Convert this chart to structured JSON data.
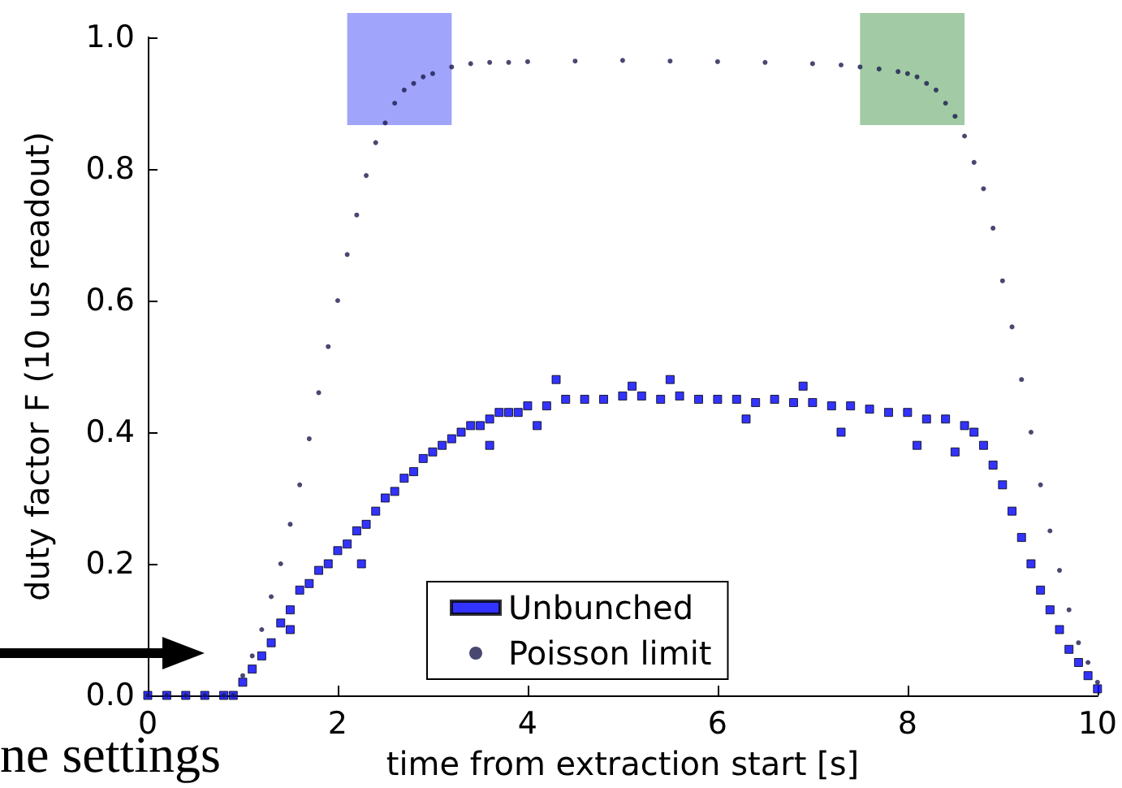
{
  "chart_data": {
    "type": "scatter",
    "xlabel": "time from extraction start [s]",
    "ylabel": "duty factor F (10 us readout)",
    "annotations": [
      "ne settings"
    ],
    "xlim": [
      0,
      10
    ],
    "xticks": [
      0,
      2,
      4,
      6,
      8,
      10
    ],
    "ylim": [
      0,
      1
    ],
    "yticks": [
      {
        "value": 0,
        "label": "0.0"
      },
      0.2,
      0.4,
      0.6,
      0.8,
      {
        "value": 1,
        "label": "1.0"
      }
    ],
    "grid": false,
    "legend": "bottom",
    "bands": [
      {
        "axis": "x",
        "from": 2.1,
        "to": 3.2,
        "color": "#a0a4fa"
      },
      {
        "axis": "x",
        "from": 7.5,
        "to": 8.6,
        "color": "#a2caa4"
      }
    ],
    "series": [
      {
        "name": "Unbunched",
        "color": "#0000ff",
        "marker": "square",
        "x": [
          0,
          0.2,
          0.4,
          0.6,
          0.8,
          0.9,
          1.0,
          1.1,
          1.2,
          1.3,
          1.4,
          1.5,
          1.6,
          1.7,
          1.8,
          1.9,
          2.0,
          2.1,
          2.2,
          2.3,
          2.4,
          2.5,
          2.6,
          2.7,
          2.8,
          2.9,
          3.0,
          3.1,
          3.2,
          3.3,
          3.4,
          3.5,
          3.6,
          3.7,
          3.8,
          3.9,
          4.0,
          4.2,
          4.4,
          4.6,
          4.8,
          5.0,
          5.2,
          5.4,
          5.6,
          5.8,
          6.0,
          6.2,
          6.4,
          6.6,
          6.8,
          7.0,
          7.2,
          7.4,
          7.6,
          7.8,
          8.0,
          8.2,
          8.4,
          8.6,
          8.7,
          8.8,
          8.9,
          9.0,
          9.1,
          9.2,
          9.3,
          9.4,
          9.5,
          9.6,
          9.7,
          9.8,
          9.9,
          10.0,
          2.25,
          3.6,
          4.3,
          5.1,
          6.3,
          7.3,
          8.1,
          8.5,
          1.5,
          4.1,
          5.5,
          6.9
        ],
        "values": [
          0,
          0,
          0,
          0,
          0,
          0,
          0.02,
          0.04,
          0.06,
          0.08,
          0.11,
          0.13,
          0.16,
          0.17,
          0.19,
          0.2,
          0.22,
          0.23,
          0.25,
          0.26,
          0.28,
          0.3,
          0.31,
          0.33,
          0.34,
          0.36,
          0.37,
          0.38,
          0.39,
          0.4,
          0.41,
          0.41,
          0.42,
          0.43,
          0.43,
          0.43,
          0.44,
          0.44,
          0.45,
          0.45,
          0.45,
          0.455,
          0.455,
          0.45,
          0.455,
          0.45,
          0.45,
          0.45,
          0.445,
          0.45,
          0.445,
          0.445,
          0.44,
          0.44,
          0.435,
          0.43,
          0.43,
          0.42,
          0.42,
          0.41,
          0.4,
          0.38,
          0.35,
          0.32,
          0.28,
          0.24,
          0.2,
          0.16,
          0.13,
          0.1,
          0.07,
          0.05,
          0.03,
          0.01,
          0.2,
          0.38,
          0.48,
          0.47,
          0.42,
          0.4,
          0.38,
          0.37,
          0.1,
          0.41,
          0.48,
          0.47
        ]
      },
      {
        "name": "Poisson limit",
        "color": "#1a1a4d",
        "marker": "circle",
        "x": [
          0,
          0.2,
          0.4,
          0.6,
          0.8,
          0.9,
          1.0,
          1.1,
          1.2,
          1.3,
          1.4,
          1.5,
          1.6,
          1.7,
          1.8,
          1.9,
          2.0,
          2.1,
          2.2,
          2.3,
          2.4,
          2.5,
          2.6,
          2.7,
          2.8,
          2.9,
          3.0,
          3.2,
          3.4,
          3.6,
          3.8,
          4.0,
          4.5,
          5.0,
          5.5,
          6.0,
          6.5,
          7.0,
          7.3,
          7.5,
          7.7,
          7.9,
          8.0,
          8.1,
          8.2,
          8.3,
          8.4,
          8.5,
          8.6,
          8.7,
          8.8,
          8.9,
          9.0,
          9.1,
          9.2,
          9.3,
          9.4,
          9.5,
          9.6,
          9.7,
          9.8,
          9.9,
          10.0
        ],
        "values": [
          0,
          0,
          0,
          0,
          0,
          0,
          0.03,
          0.06,
          0.1,
          0.15,
          0.2,
          0.26,
          0.32,
          0.39,
          0.46,
          0.53,
          0.6,
          0.67,
          0.73,
          0.79,
          0.84,
          0.87,
          0.9,
          0.92,
          0.93,
          0.94,
          0.945,
          0.955,
          0.96,
          0.962,
          0.962,
          0.963,
          0.964,
          0.965,
          0.964,
          0.963,
          0.962,
          0.96,
          0.958,
          0.955,
          0.952,
          0.948,
          0.945,
          0.94,
          0.93,
          0.92,
          0.9,
          0.88,
          0.85,
          0.81,
          0.77,
          0.71,
          0.63,
          0.56,
          0.48,
          0.4,
          0.32,
          0.25,
          0.19,
          0.13,
          0.08,
          0.05,
          0.02
        ]
      }
    ]
  }
}
